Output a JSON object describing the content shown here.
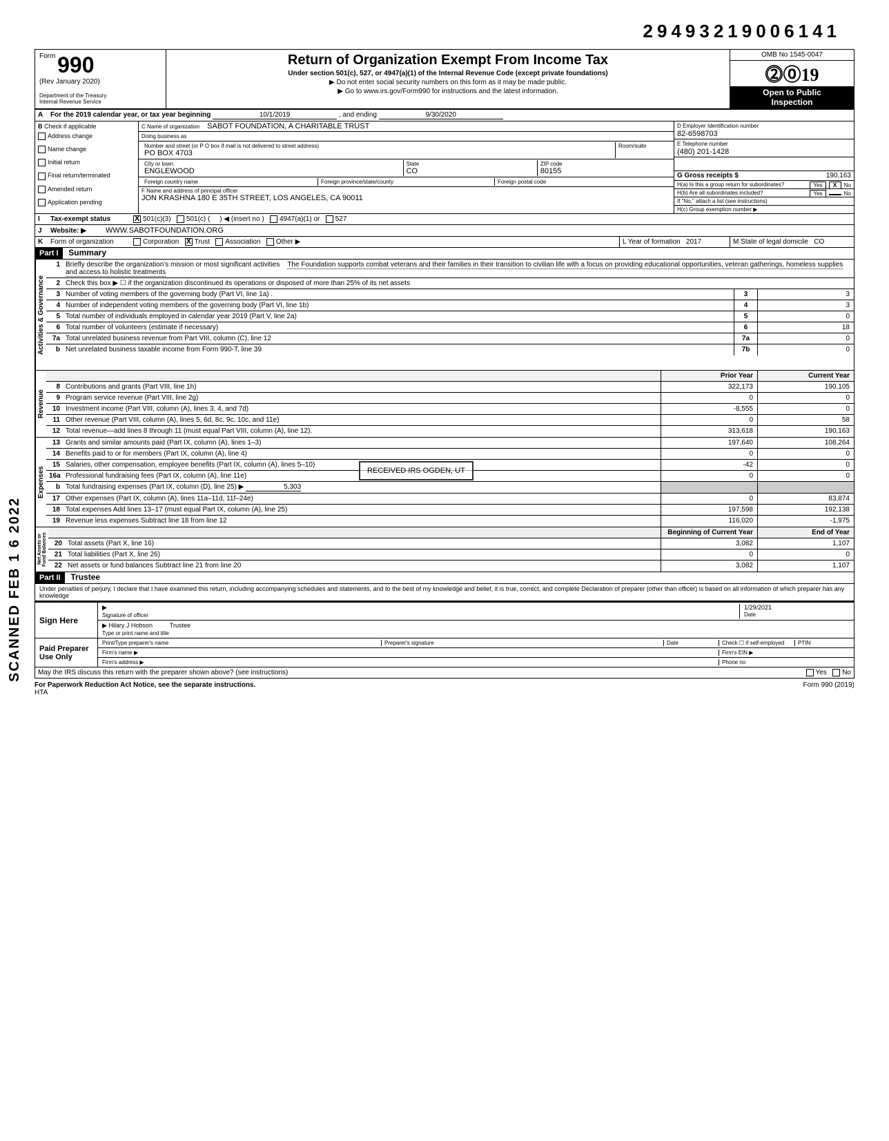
{
  "dln": "29493219006141",
  "form": {
    "number": "990",
    "rev": "(Rev January 2020)",
    "dept": "Department of the Treasury",
    "irs": "Internal Revenue Service",
    "title": "Return of Organization Exempt From Income Tax",
    "subtitle": "Under section 501(c), 527, or 4947(a)(1) of the Internal Revenue Code (except private foundations)",
    "note1": "▶ Do not enter social security numbers on this form as it may be made public.",
    "note2": "▶ Go to www.irs.gov/Form990 for instructions and the latest information.",
    "omb": "OMB No 1545-0047",
    "year": "2019",
    "open": "Open to Public",
    "inspection": "Inspection"
  },
  "lineA": {
    "prefix": "For the 2019 calendar year, or tax year beginning",
    "begin": "10/1/2019",
    "mid": ", and ending",
    "end": "9/30/2020"
  },
  "colB": {
    "header": "Check if applicable",
    "items": [
      "Address change",
      "Name change",
      "Initial return",
      "Final return/terminated",
      "Amended return",
      "Application pending"
    ]
  },
  "org": {
    "name_label": "C  Name of organization",
    "name": "SABOT FOUNDATION, A CHARITABLE TRUST",
    "dba_label": "Doing business as",
    "dba": "",
    "street_label": "Number and street (or P O  box if mail is not delivered to street address)",
    "street": "PO BOX 4703",
    "room_label": "Room/suite",
    "room": "",
    "city_label": "City or town",
    "city": "ENGLEWOOD",
    "state_label": "State",
    "state": "CO",
    "zip_label": "ZIP code",
    "zip": "80155",
    "foreign_country_label": "Foreign country name",
    "foreign_prov_label": "Foreign province/state/county",
    "foreign_postal_label": "Foreign postal code"
  },
  "colD": {
    "ein_label": "D  Employer Identification number",
    "ein": "82-6598703",
    "phone_label": "E  Telephone number",
    "phone": "(480) 201-1428",
    "gross_label": "G  Gross receipts $",
    "gross": "190,163"
  },
  "lineF": {
    "label": "F  Name and address of principal officer",
    "value": "JON KRASHNA 180 E 35TH STREET, LOS ANGELES, CA  90011"
  },
  "lineH": {
    "a": "H(a) Is this a group return for subordinates?",
    "b": "H(b) Are all subordinates included?",
    "note": "If \"No,\" attach a list  (see instructions)",
    "c": "H(c) Group exemption number ▶"
  },
  "lineI": {
    "label": "Tax-exempt status",
    "opts": [
      "501(c)(3)",
      "501(c)",
      "◀ (insert no )",
      "4947(a)(1) or",
      "527"
    ]
  },
  "lineJ": {
    "label": "Website: ▶",
    "value": "WWW.SABOTFOUNDATION.ORG"
  },
  "lineK": {
    "label": "Form of organization",
    "opts": [
      "Corporation",
      "Trust",
      "Association",
      "Other ▶"
    ],
    "year_label": "L Year of formation",
    "year": "2017",
    "state_label": "M State of legal domicile",
    "state": "CO"
  },
  "part1": {
    "header": "Part I",
    "title": "Summary",
    "l1": "Briefly describe the organization's mission or most significant activities",
    "l1v": "The Foundation supports combat veterans and their families in their transition to civilian life with a focus on providing educational opportunities, veteran gatherings, homeless supplies and access to holistic treatments",
    "l2": "Check this box ▶ ☐ if the organization discontinued its operations or disposed of more than 25% of its net assets",
    "rows": [
      {
        "n": "3",
        "d": "Number of voting members of the governing body (Part VI, line 1a) .",
        "m": "3",
        "v": "3"
      },
      {
        "n": "4",
        "d": "Number of independent voting members of the governing body (Part VI, line 1b)",
        "m": "4",
        "v": "3"
      },
      {
        "n": "5",
        "d": "Total number of individuals employed in calendar year 2019 (Part V, line 2a)",
        "m": "5",
        "v": "0"
      },
      {
        "n": "6",
        "d": "Total number of volunteers (estimate if necessary)",
        "m": "6",
        "v": "18"
      },
      {
        "n": "7a",
        "d": "Total unrelated business revenue from Part VIII, column (C), line 12",
        "m": "7a",
        "v": "0"
      },
      {
        "n": "b",
        "d": "Net unrelated business taxable income from Form 990-T, line 39",
        "m": "7b",
        "v": "0"
      }
    ],
    "col_hdr1": "Prior Year",
    "col_hdr2": "Current Year",
    "revenue": [
      {
        "n": "8",
        "d": "Contributions and grants (Part VIII, line 1h)",
        "c1": "322,173",
        "c2": "190,105"
      },
      {
        "n": "9",
        "d": "Program service revenue (Part VIII, line 2g)",
        "c1": "0",
        "c2": "0"
      },
      {
        "n": "10",
        "d": "Investment income (Part VIII, column (A), lines 3, 4, and 7d)",
        "c1": "-8,555",
        "c2": "0"
      },
      {
        "n": "11",
        "d": "Other revenue (Part VIII, column (A), lines 5, 6d, 8c, 9c, 10c, and 11e)",
        "c1": "0",
        "c2": "58"
      },
      {
        "n": "12",
        "d": "Total revenue—add lines 8 through 11 (must equal Part VIII, column (A), line 12).",
        "c1": "313,618",
        "c2": "190,163"
      }
    ],
    "expenses": [
      {
        "n": "13",
        "d": "Grants and similar amounts paid (Part IX, column (A), lines 1–3)",
        "c1": "197,640",
        "c2": "108,264"
      },
      {
        "n": "14",
        "d": "Benefits paid to or for members (Part IX, column (A), line 4)",
        "c1": "0",
        "c2": "0"
      },
      {
        "n": "15",
        "d": "Salaries, other compensation, employee benefits (Part IX, column (A), lines 5–10)",
        "c1": "-42",
        "c2": "0"
      },
      {
        "n": "16a",
        "d": "Professional fundraising fees (Part IX, column (A), line 11e)",
        "c1": "0",
        "c2": "0"
      },
      {
        "n": "b",
        "d": "Total fundraising expenses (Part IX, column (D), line 25) ▶",
        "inline": "5,303",
        "c1": "",
        "c2": "",
        "shade": true
      },
      {
        "n": "17",
        "d": "Other expenses (Part IX, column (A), lines 11a–11d, 11f–24e)",
        "c1": "0",
        "c2": "83,874"
      },
      {
        "n": "18",
        "d": "Total expenses  Add lines 13–17 (must equal Part IX, column (A), line 25)",
        "c1": "197,598",
        "c2": "192,138"
      },
      {
        "n": "19",
        "d": "Revenue less expenses  Subtract line 18 from line 12",
        "c1": "116,020",
        "c2": "-1,975"
      }
    ],
    "na_hdr1": "Beginning of Current Year",
    "na_hdr2": "End of Year",
    "netassets": [
      {
        "n": "20",
        "d": "Total assets (Part X, line 16)",
        "c1": "3,082",
        "c2": "1,107"
      },
      {
        "n": "21",
        "d": "Total liabilities (Part X, line 26)",
        "c1": "0",
        "c2": "0"
      },
      {
        "n": "22",
        "d": "Net assets or fund balances  Subtract line 21 from line 20",
        "c1": "3,082",
        "c2": "1,107"
      }
    ]
  },
  "part2": {
    "header": "Part II",
    "title": "Trustee",
    "perjury": "Under penalties of perjury, I declare that I have examined this return, including accompanying schedules and statements, and to the best of my knowledge and belief, it is true, correct, and complete  Declaration of preparer (other than officer) is based on all information of which preparer has any knowledge",
    "sign": "Sign Here",
    "sig_label": "Signature of officer",
    "date_label": "Date",
    "date": "1/29/2021",
    "name": "Hilary J Hobson",
    "name_label": "Type or print name and title",
    "paid": "Paid Preparer Use Only",
    "prep_name": "Print/Type preparer's name",
    "prep_sig": "Preparer's signature",
    "prep_date": "Date",
    "chk_self": "Check ☐ if self-employed",
    "ptin": "PTIN",
    "firm_name": "Firm's name ▶",
    "firm_ein": "Firm's EIN ▶",
    "firm_addr": "Firm's address ▶",
    "phone": "Phone no",
    "discuss": "May the IRS discuss this return with the preparer shown above? (see instructions)"
  },
  "footer": {
    "left": "For Paperwork Reduction Act Notice, see the separate instructions.",
    "hta": "HTA",
    "right": "Form 990 (2019)"
  },
  "stamps": {
    "side": "SCANNED FEB 1 6 2022",
    "received": "RECEIVED IRS OGDEN, UT"
  }
}
